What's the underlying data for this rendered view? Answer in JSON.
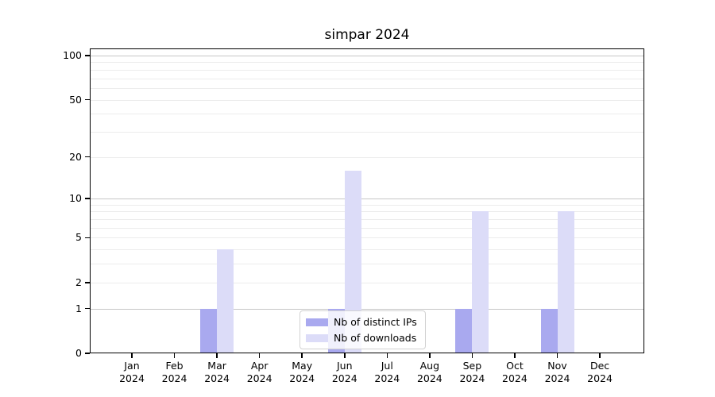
{
  "chart_data": {
    "type": "bar",
    "title": "simpar 2024",
    "year_label": "2024",
    "categories": [
      "Jan",
      "Feb",
      "Mar",
      "Apr",
      "May",
      "Jun",
      "Jul",
      "Aug",
      "Sep",
      "Oct",
      "Nov",
      "Dec"
    ],
    "series": [
      {
        "name": "Nb of distinct IPs",
        "color": "#a9a9ef",
        "values": [
          0,
          0,
          1,
          0,
          0,
          1,
          0,
          0,
          1,
          0,
          1,
          0
        ]
      },
      {
        "name": "Nb of downloads",
        "color": "#dcdcf8",
        "values": [
          0,
          0,
          4,
          0,
          0,
          16,
          0,
          0,
          8,
          0,
          8,
          0
        ]
      }
    ],
    "y_scale": "log10(value+1)",
    "y_ticks": [
      0,
      1,
      2,
      5,
      10,
      20,
      50,
      100
    ],
    "ylim": [
      0,
      112
    ],
    "grid_major": [
      1,
      10,
      100
    ],
    "grid_minor": [
      2,
      3,
      4,
      5,
      6,
      7,
      8,
      9,
      20,
      30,
      40,
      50,
      60,
      70,
      80,
      90
    ],
    "grid": "on",
    "legend_position": "bottom-center",
    "colors": {
      "frame": "#000000",
      "grid_major": "#c6c6c6",
      "grid_minor": "#ececec",
      "background": "#ffffff",
      "legend_border": "#d2d2d2"
    }
  }
}
